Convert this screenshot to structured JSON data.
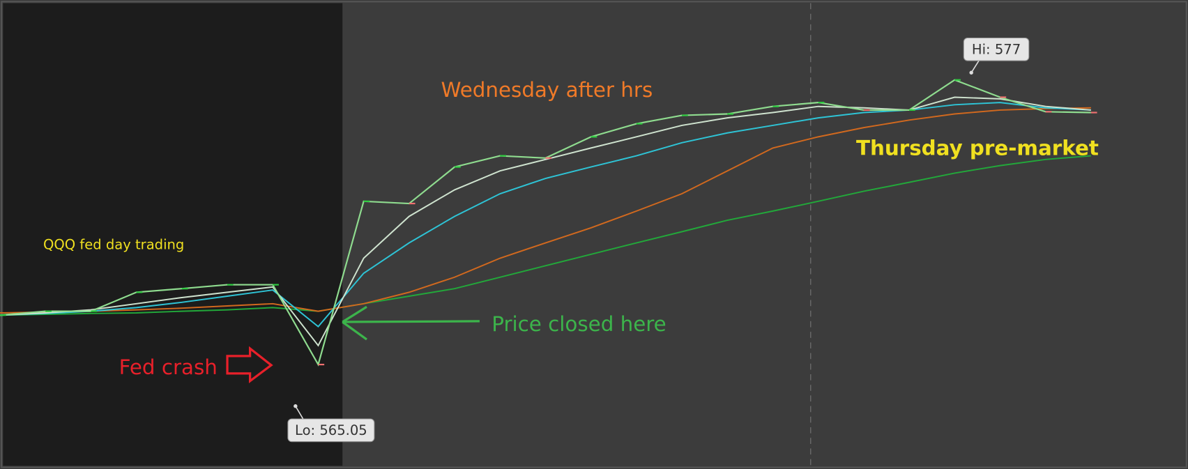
{
  "chart_data": {
    "type": "line",
    "categories": [
      null,
      null,
      null,
      null,
      null,
      null,
      null,
      null,
      null,
      null,
      null,
      null,
      null,
      null,
      null,
      null,
      null,
      null,
      null,
      null,
      null,
      null,
      null,
      null,
      null
    ],
    "ylim": [
      562.8,
      579.6
    ],
    "up_color": "#2ecc40",
    "down_color": "#f07070",
    "series": [
      {
        "name": "QQQ",
        "color": "#8fdc8f",
        "values": [
          568.31,
          568.45,
          568.45,
          569.13,
          569.26,
          569.4,
          569.4,
          566.54,
          572.39,
          572.31,
          573.62,
          574.02,
          573.94,
          574.7,
          575.17,
          575.47,
          575.52,
          575.79,
          575.93,
          575.66,
          575.66,
          576.74,
          576.12,
          575.6,
          575.57
        ]
      },
      {
        "color": "#cfe3cf",
        "values": [
          568.31,
          568.39,
          568.5,
          568.72,
          568.94,
          569.13,
          569.32,
          567.22,
          570.35,
          571.85,
          572.8,
          573.48,
          573.89,
          574.3,
          574.7,
          575.11,
          575.38,
          575.57,
          575.79,
          575.74,
          575.66,
          576.12,
          576.06,
          575.79,
          575.66
        ]
      },
      {
        "color": "#2ec4d6",
        "values": [
          568.31,
          568.37,
          568.45,
          568.58,
          568.77,
          568.99,
          569.21,
          567.9,
          569.81,
          570.9,
          571.85,
          572.66,
          573.21,
          573.62,
          574.02,
          574.49,
          574.84,
          575.11,
          575.38,
          575.57,
          575.66,
          575.85,
          575.93,
          575.74,
          575.66
        ]
      },
      {
        "color": "#d2691e",
        "values": [
          568.39,
          568.42,
          568.45,
          568.5,
          568.56,
          568.64,
          568.72,
          568.45,
          568.72,
          569.13,
          569.67,
          570.35,
          570.9,
          571.44,
          572.04,
          572.66,
          573.48,
          574.3,
          574.7,
          575.03,
          575.3,
          575.52,
          575.66,
          575.71,
          575.74
        ]
      },
      {
        "color": "#22a83a",
        "values": [
          568.31,
          568.34,
          568.37,
          568.39,
          568.45,
          568.5,
          568.58,
          568.45,
          568.72,
          568.99,
          569.26,
          569.67,
          570.08,
          570.49,
          570.9,
          571.3,
          571.71,
          572.04,
          572.39,
          572.75,
          573.07,
          573.4,
          573.67,
          573.89,
          574.02
        ]
      }
    ],
    "extremes": [
      {
        "value": 577,
        "label": "Hi: 577"
      },
      {
        "value": 565.05,
        "label": "Lo: 565.05"
      }
    ],
    "annotations": [
      "QQQ fed day trading",
      "Fed crash",
      "Wednesday after hrs",
      "Thursday pre-market",
      "Price closed here"
    ]
  }
}
